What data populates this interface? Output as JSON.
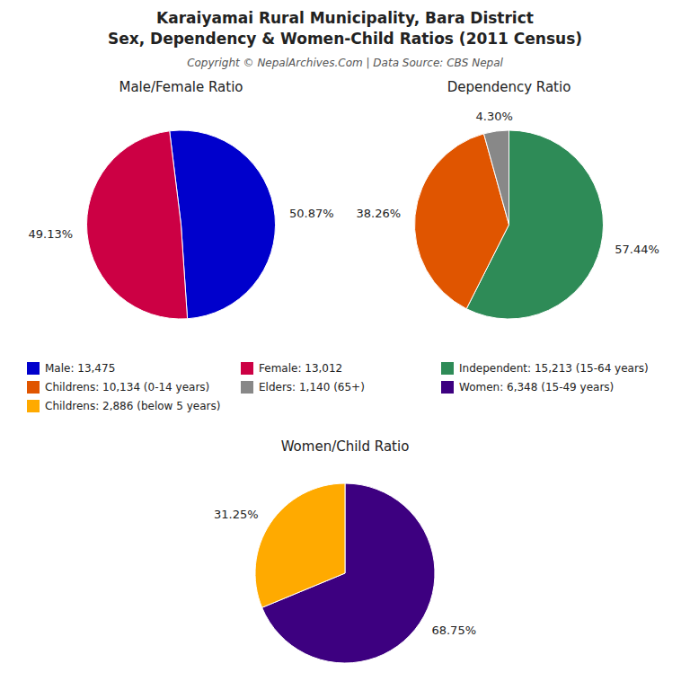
{
  "title": [
    "Karaiyamai Rural Municipality, Bara District",
    "Sex, Dependency & Women-Child Ratios (2011 Census)"
  ],
  "subtitle": "Copyright © NepalArchives.Com | Data Source: CBS Nepal",
  "chart_data": [
    {
      "type": "pie",
      "title": "Male/Female Ratio",
      "categories": [
        "Male: 13,475",
        "Female: 13,012"
      ],
      "values": [
        50.87,
        49.13
      ],
      "value_labels": [
        "50.87%",
        "49.13%"
      ],
      "colors": [
        "#0000cc",
        "#cc0044"
      ],
      "data_labels": true,
      "legend": "bottom"
    },
    {
      "type": "pie",
      "title": "Dependency Ratio",
      "categories": [
        "Independent: 15,213 (15-64 years)",
        "Childrens: 10,134 (0-14 years)",
        "Elders: 1,140 (65+)"
      ],
      "values": [
        57.44,
        38.26,
        4.3
      ],
      "value_labels": [
        "57.44%",
        "38.26%",
        "4.30%"
      ],
      "colors": [
        "#2e8b57",
        "#e05500",
        "#888888"
      ],
      "data_labels": true,
      "legend": "bottom"
    },
    {
      "type": "pie",
      "title": "Women/Child Ratio",
      "categories": [
        "Women: 6,348 (15-49 years)",
        "Childrens: 2,886 (below 5 years)"
      ],
      "values": [
        68.75,
        31.25
      ],
      "value_labels": [
        "68.75%",
        "31.25%"
      ],
      "colors": [
        "#3d0080",
        "#ffaa00"
      ],
      "data_labels": true,
      "legend": "top"
    }
  ]
}
